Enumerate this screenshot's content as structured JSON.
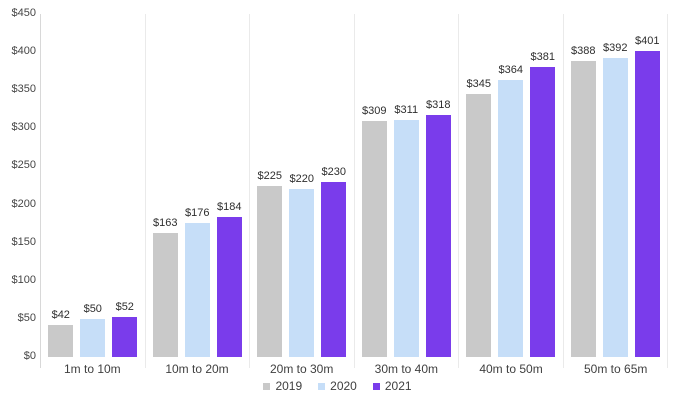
{
  "chart_data": {
    "type": "bar",
    "title": "",
    "xlabel": "",
    "ylabel": "",
    "value_prefix": "$",
    "ylim": [
      0,
      450
    ],
    "gridlines": false,
    "legend_position": "bottom",
    "categories": [
      "1m to 10m",
      "10m to 20m",
      "20m to 30m",
      "30m to 40m",
      "40m to 50m",
      "50m to 65m"
    ],
    "series": [
      {
        "name": "2019",
        "color": "#c9c9c9",
        "values": [
          42,
          163,
          225,
          309,
          345,
          388
        ]
      },
      {
        "name": "2020",
        "color": "#c6def8",
        "values": [
          50,
          176,
          220,
          311,
          364,
          392
        ]
      },
      {
        "name": "2021",
        "color": "#7a3ceb",
        "values": [
          52,
          184,
          230,
          318,
          381,
          401
        ]
      }
    ],
    "y_ticks": [
      {
        "label": "$450",
        "value": 450
      },
      {
        "label": "$400",
        "value": 400
      },
      {
        "label": "$350",
        "value": 350
      },
      {
        "label": "$300",
        "value": 300
      },
      {
        "label": "$250",
        "value": 250
      },
      {
        "label": "$200",
        "value": 200
      },
      {
        "label": "$150",
        "value": 150
      },
      {
        "label": "$100",
        "value": 100
      },
      {
        "label": "$50",
        "value": 50
      },
      {
        "label": "$0",
        "value": 0
      }
    ]
  }
}
